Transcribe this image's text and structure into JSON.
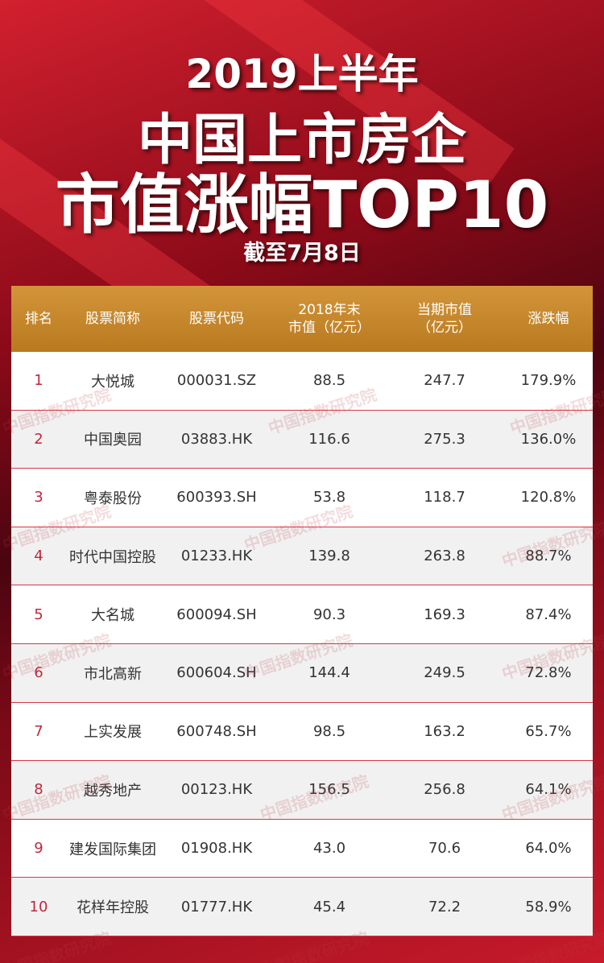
{
  "header": {
    "line1": "2019上半年",
    "line2": "中国上市房企",
    "line3": "市值涨幅TOP10",
    "subtitle": "截至7月8日"
  },
  "table": {
    "columns": [
      [
        "排名"
      ],
      [
        "股票简称"
      ],
      [
        "股票代码"
      ],
      [
        "2018年末",
        "市值（亿元）"
      ],
      [
        "当期市值",
        "（亿元）"
      ],
      [
        "涨跌幅"
      ]
    ],
    "rows": [
      [
        "1",
        "大悦城",
        "000031.SZ",
        "88.5",
        "247.7",
        "179.9%"
      ],
      [
        "2",
        "中国奥园",
        "03883.HK",
        "116.6",
        "275.3",
        "136.0%"
      ],
      [
        "3",
        "粤泰股份",
        "600393.SH",
        "53.8",
        "118.7",
        "120.8%"
      ],
      [
        "4",
        "时代中国控股",
        "01233.HK",
        "139.8",
        "263.8",
        "88.7%"
      ],
      [
        "5",
        "大名城",
        "600094.SH",
        "90.3",
        "169.3",
        "87.4%"
      ],
      [
        "6",
        "市北高新",
        "600604.SH",
        "144.4",
        "249.5",
        "72.8%"
      ],
      [
        "7",
        "上实发展",
        "600748.SH",
        "98.5",
        "163.2",
        "65.7%"
      ],
      [
        "8",
        "越秀地产",
        "00123.HK",
        "156.5",
        "256.8",
        "64.1%"
      ],
      [
        "9",
        "建发国际集团",
        "01908.HK",
        "43.0",
        "70.6",
        "64.0%"
      ],
      [
        "10",
        "花样年控股",
        "01777.HK",
        "45.4",
        "72.2",
        "58.9%"
      ]
    ]
  },
  "watermark": "中国指数研究院"
}
